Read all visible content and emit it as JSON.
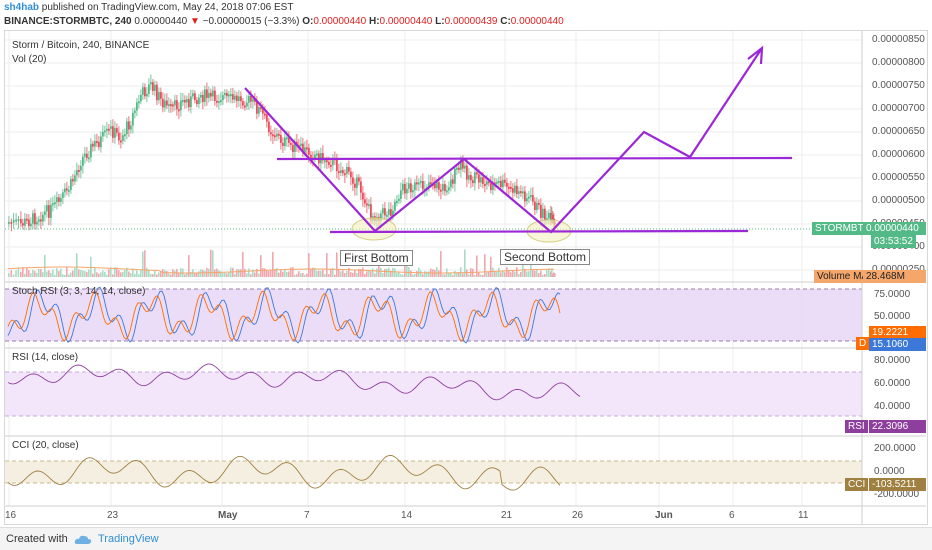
{
  "header": {
    "author": "sh4hab",
    "published_text": "published on TradingView.com, May 24, 2018 07:06 EST",
    "symbol_line": "BINANCE:STORMBTC, 240",
    "price": "0.00000440",
    "change": "−0.00000015 (−3.3%)",
    "o_label": "O:",
    "o_value": "0.00000440",
    "h_label": "H:",
    "h_value": "0.00000440",
    "l_label": "L:",
    "l_value": "0.00000439",
    "c_label": "C:",
    "c_value": "0.00000440"
  },
  "main_pane": {
    "title": "Storm / Bitcoin, 240, BINANCE",
    "vol_label": "Vol (20)",
    "price_ticks": [
      "0.00000850",
      "0.00000800",
      "0.00000750",
      "0.00000700",
      "0.00000650",
      "0.00000600",
      "0.00000550",
      "0.00000500",
      "0.00000450",
      "0.00000400",
      "0.00000250"
    ],
    "symbol_tag": "STORMBTC",
    "symbol_price_tag": "0.00000440",
    "countdown_tag": "03:53:52",
    "volume_ma_tag": "Volume MA",
    "volume_ma_value": "28.468M",
    "annotation_first": "First Bottom",
    "annotation_second": "Second Bottom"
  },
  "stoch_pane": {
    "title": "Stoch RSI (3, 3, 14, 14, close)",
    "ticks": [
      "75.0000",
      "50.0000"
    ],
    "k_value": "19.2221",
    "d_label": "D",
    "d_value": "15.1060"
  },
  "rsi_pane": {
    "title": "RSI (14, close)",
    "ticks": [
      "80.0000",
      "60.0000",
      "40.0000"
    ],
    "label": "RSI",
    "value": "22.3096"
  },
  "cci_pane": {
    "title": "CCI (20, close)",
    "ticks": [
      "200.0000",
      "0.0000",
      "-200.0000"
    ],
    "label": "CCI",
    "value": "-103.5211"
  },
  "time_axis": [
    "16",
    "23",
    "May",
    "7",
    "14",
    "21",
    "26",
    "Jun",
    "6",
    "11"
  ],
  "footer": {
    "created_with": "Created with",
    "brand": "TradingView"
  },
  "colors": {
    "bull": "#53b987",
    "bear": "#eb4d5c",
    "drawing": "#9c27d6",
    "rsi_line": "#8e3f9e",
    "cci_line": "#a08040",
    "stoch_k": "#3c78d8",
    "stoch_d": "#ff6d00"
  }
}
